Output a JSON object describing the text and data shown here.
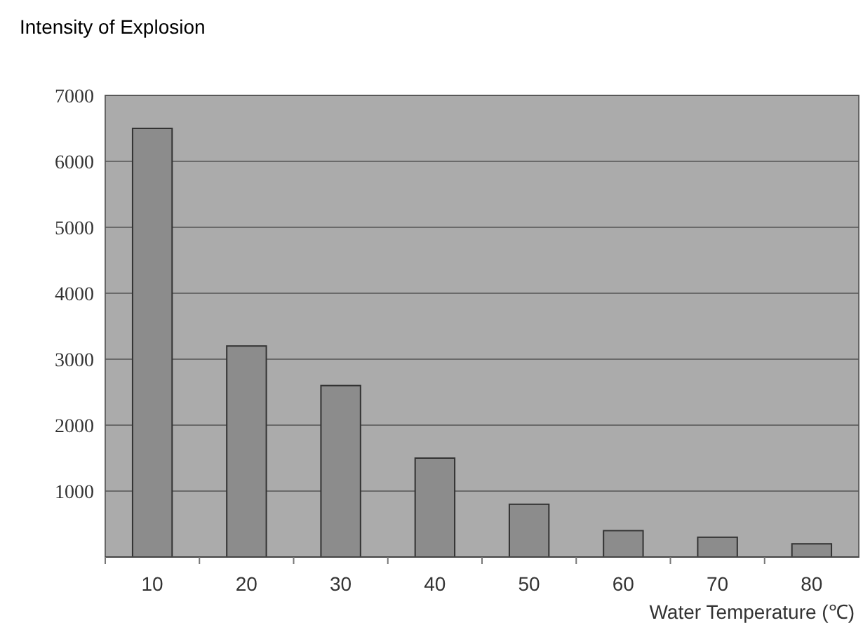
{
  "chart_data": {
    "type": "bar",
    "title": "Intensity of Explosion",
    "xlabel": "Water Temperature (℃)",
    "categories": [
      "10",
      "20",
      "30",
      "40",
      "50",
      "60",
      "70",
      "80"
    ],
    "values": [
      6500,
      3200,
      2600,
      1500,
      800,
      400,
      300,
      200
    ],
    "color": "#8c8c8c",
    "ylim": [
      0,
      7000
    ],
    "yticks": [
      {
        "value": 0,
        "label": null
      },
      1000,
      2000,
      3000,
      4000,
      5000,
      6000,
      7000
    ],
    "grid": "y"
  }
}
